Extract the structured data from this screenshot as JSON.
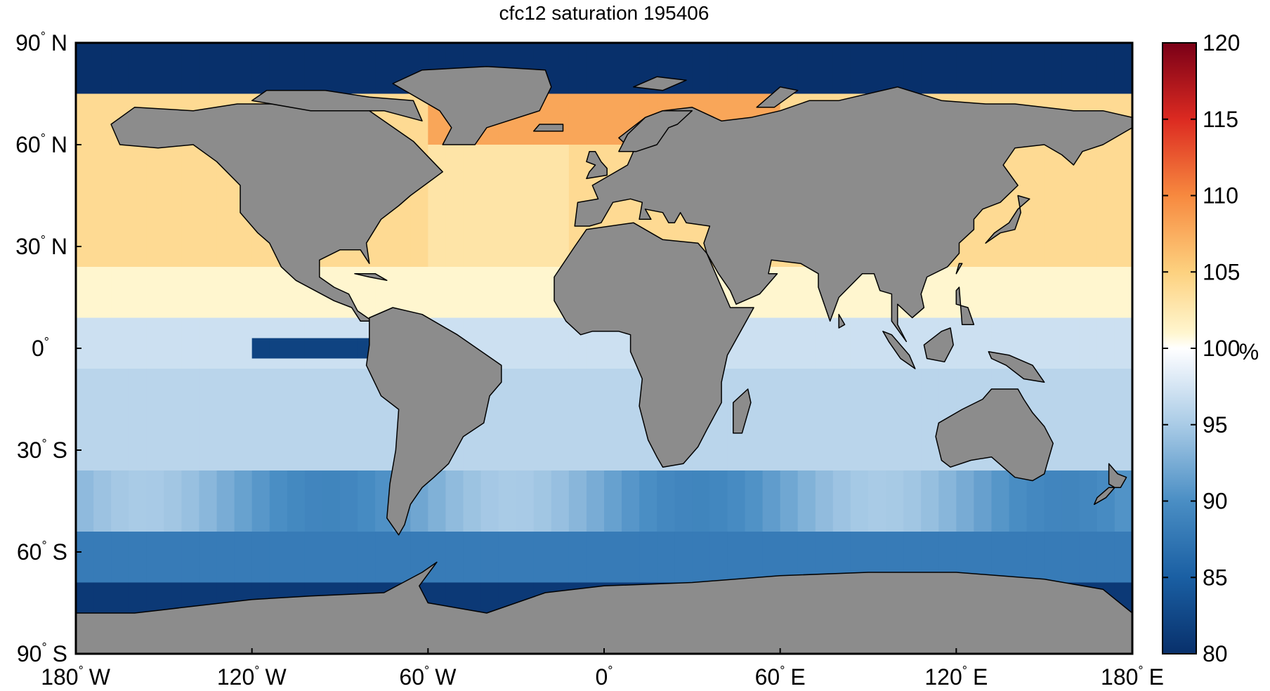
{
  "title": "cfc12 saturation 195406",
  "map": {
    "projection": "equirectangular",
    "lon_range": [
      -180,
      180
    ],
    "lat_range": [
      -90,
      90
    ],
    "land_color": "#8c8c8c",
    "coastline_color": "#000000",
    "lat_ticks": [
      {
        "lat": 90,
        "label": "90",
        "hemi": "N"
      },
      {
        "lat": 60,
        "label": "60",
        "hemi": "N"
      },
      {
        "lat": 30,
        "label": "30",
        "hemi": "N"
      },
      {
        "lat": 0,
        "label": "0",
        "hemi": ""
      },
      {
        "lat": -30,
        "label": "30",
        "hemi": "S"
      },
      {
        "lat": -60,
        "label": "60",
        "hemi": "S"
      },
      {
        "lat": -90,
        "label": "90",
        "hemi": "S"
      }
    ],
    "lon_ticks": [
      {
        "lon": -180,
        "label": "180",
        "hemi": "W"
      },
      {
        "lon": -120,
        "label": "120",
        "hemi": "W"
      },
      {
        "lon": -60,
        "label": "60",
        "hemi": "W"
      },
      {
        "lon": 0,
        "label": "0",
        "hemi": ""
      },
      {
        "lon": 60,
        "label": "60",
        "hemi": "E"
      },
      {
        "lon": 120,
        "label": "120",
        "hemi": "E"
      },
      {
        "lon": 180,
        "label": "180",
        "hemi": "E"
      }
    ]
  },
  "colorbar": {
    "min": 80,
    "max": 120,
    "ticks": [
      80,
      85,
      90,
      95,
      100,
      105,
      110,
      115,
      120
    ],
    "unit": "%",
    "stops": [
      {
        "v": 80,
        "c": "#08306b"
      },
      {
        "v": 85,
        "c": "#1a5fa3"
      },
      {
        "v": 90,
        "c": "#4a8ec4"
      },
      {
        "v": 95,
        "c": "#a9cbe6"
      },
      {
        "v": 99,
        "c": "#eef4fb"
      },
      {
        "v": 100,
        "c": "#ffffff"
      },
      {
        "v": 101,
        "c": "#fff6cf"
      },
      {
        "v": 105,
        "c": "#fdd17f"
      },
      {
        "v": 110,
        "c": "#f7893f"
      },
      {
        "v": 115,
        "c": "#dc2a21"
      },
      {
        "v": 120,
        "c": "#7a0017"
      }
    ]
  }
}
